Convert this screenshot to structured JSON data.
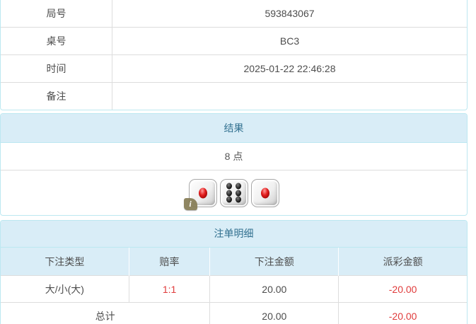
{
  "info_table": {
    "rows": [
      {
        "label": "局号",
        "value": "593843067"
      },
      {
        "label": "桌号",
        "value": "BC3"
      },
      {
        "label": "时间",
        "value": "2025-01-22 22:46:28"
      },
      {
        "label": "备注",
        "value": ""
      }
    ]
  },
  "result_panel": {
    "title": "结果",
    "points": "8 点",
    "dice": [
      1,
      6,
      1
    ],
    "info_badge": "i"
  },
  "bets_panel": {
    "title": "注单明细",
    "columns": [
      "下注类型",
      "赔率",
      "下注金额",
      "派彩金额"
    ],
    "rows": [
      {
        "type": "大/小(大)",
        "odds": "1:1",
        "amount": "20.00",
        "payout": "-20.00"
      }
    ],
    "total": {
      "label": "总计",
      "amount": "20.00",
      "payout": "-20.00"
    }
  },
  "colors": {
    "panel_border": "#bce8f1",
    "heading_bg": "#d9edf7",
    "heading_text": "#31708f",
    "table_border": "#dddddd",
    "body_text": "#4d4d4d",
    "negative_red": "#e03c3c",
    "info_badge_bg": "#867c55"
  }
}
